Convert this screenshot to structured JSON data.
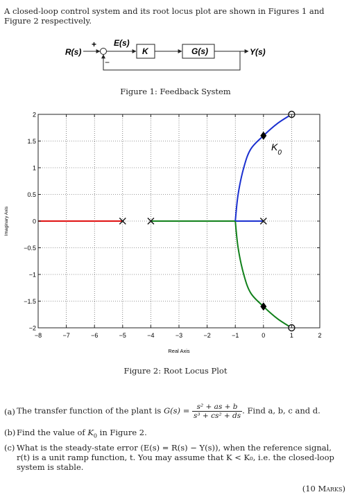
{
  "intro": "A closed-loop control system and its root locus plot are shown in Figures 1 and Figure 2 respectively.",
  "figure1": {
    "caption": "Figure 1: Feedback System",
    "input_label": "R(s)",
    "error_label": "E(s)",
    "plus_sign": "+",
    "minus_sign": "−",
    "gain_block": "K",
    "plant_block": "G(s)",
    "output_label": "Y(s)"
  },
  "figure2": {
    "caption": "Figure 2: Root Locus Plot",
    "xlabel": "Real Axis",
    "ylabel": "Imaginary Axis",
    "annotation": "K",
    "annotation_sub": "0"
  },
  "chart_data": {
    "type": "line",
    "title": "",
    "xlabel": "Real Axis",
    "ylabel": "Imaginary Axis",
    "xlim": [
      -8,
      2
    ],
    "ylim": [
      -2,
      2
    ],
    "xticks": [
      "-8",
      "-7",
      "-6",
      "-5",
      "-4",
      "-3",
      "-2",
      "-1",
      "0",
      "1",
      "2"
    ],
    "yticks": [
      "2",
      "1.5",
      "1",
      "0.5",
      "0",
      "-0.5",
      "-1",
      "-1.5",
      "-2"
    ],
    "grid": true,
    "colors": {
      "red": "#e01010",
      "green": "#10801a",
      "blue": "#1a2fd0"
    },
    "series": [
      {
        "color": "red",
        "points": [
          [
            -8,
            0
          ],
          [
            -5,
            0
          ]
        ]
      },
      {
        "color": "green",
        "points": [
          [
            -4,
            0
          ],
          [
            -1,
            0
          ]
        ]
      },
      {
        "color": "blue",
        "points": [
          [
            -1,
            0
          ],
          [
            0,
            0
          ]
        ]
      },
      {
        "color": "blue",
        "points": [
          [
            -1,
            0
          ],
          [
            -0.9,
            0.5
          ],
          [
            -0.7,
            1.0
          ],
          [
            -0.45,
            1.35
          ],
          [
            0,
            1.6
          ],
          [
            0.5,
            1.83
          ],
          [
            1,
            2
          ]
        ]
      },
      {
        "color": "green",
        "points": [
          [
            -1,
            0
          ],
          [
            -0.9,
            -0.5
          ],
          [
            -0.7,
            -1.0
          ],
          [
            -0.45,
            -1.35
          ],
          [
            0,
            -1.6
          ],
          [
            0.5,
            -1.83
          ],
          [
            1,
            -2
          ]
        ]
      }
    ],
    "poles": [
      [
        -5,
        0
      ],
      [
        -4,
        0
      ],
      [
        0,
        0
      ]
    ],
    "zeros": [
      [
        1,
        2
      ],
      [
        1,
        -2
      ]
    ],
    "gain_markers": [
      [
        0,
        1.6
      ],
      [
        0,
        -1.6
      ]
    ]
  },
  "questions": {
    "a": {
      "label": "(a)",
      "text_before": "The transfer function of the plant is ",
      "lhs": "G(s) =",
      "num": "s² + as + b",
      "den": "s³ + cs² + ds",
      "text_after": ". Find a, b, c and d."
    },
    "b": {
      "label": "(b)",
      "text_1": "Find the value of ",
      "k": "K",
      "k_sub": "0",
      "text_2": " in Figure 2."
    },
    "c": {
      "label": "(c)",
      "text": "What is the steady-state error (E(s) = R(s) − Y(s)), when the reference signal, r(t) is a unit ramp function, t. You may assume that K < K₀, i.e. the closed-loop system is stable."
    }
  },
  "marks": "(10 Marks)"
}
